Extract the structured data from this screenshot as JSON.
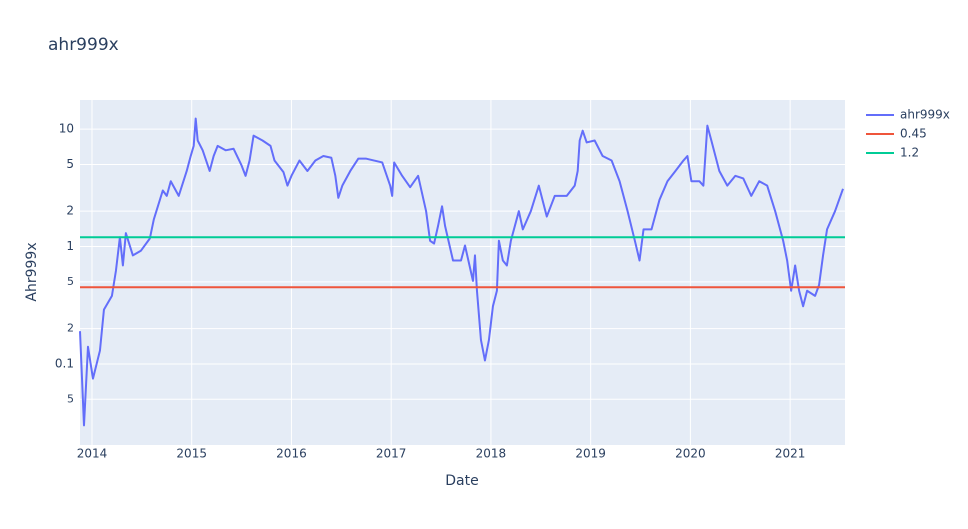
{
  "chart_data": {
    "type": "line",
    "title": "ahr999x",
    "x_label": "Date",
    "y_label": "Ahr999x",
    "y_log": true,
    "grid": true,
    "legend": "right",
    "xlim": [
      2013.88,
      2021.55
    ],
    "xticks": [
      2014,
      2015,
      2016,
      2017,
      2018,
      2019,
      2020,
      2021
    ],
    "ylim": [
      0.0204,
      17.7
    ],
    "yticks": [
      {
        "value": 0.05,
        "label": "5"
      },
      0.1,
      {
        "value": 0.2,
        "label": "2"
      },
      {
        "value": 0.5,
        "label": "5"
      },
      1,
      2,
      5,
      10
    ],
    "series": [
      {
        "name": "ahr999x",
        "color": "#636efa",
        "x": [
          2013.88,
          2013.92,
          2013.96,
          2014.01,
          2014.08,
          2014.12,
          2014.2,
          2014.24,
          2014.28,
          2014.31,
          2014.34,
          2014.41,
          2014.49,
          2014.58,
          2014.62,
          2014.71,
          2014.75,
          2014.79,
          2014.87,
          2014.95,
          2014.99,
          2015.02,
          2015.04,
          2015.06,
          2015.11,
          2015.18,
          2015.22,
          2015.26,
          2015.34,
          2015.42,
          2015.5,
          2015.54,
          2015.58,
          2015.62,
          2015.71,
          2015.79,
          2015.83,
          2015.92,
          2015.96,
          2016.0,
          2016.08,
          2016.16,
          2016.24,
          2016.32,
          2016.4,
          2016.44,
          2016.47,
          2016.51,
          2016.59,
          2016.67,
          2016.75,
          2016.83,
          2016.91,
          2016.99,
          2017.01,
          2017.03,
          2017.11,
          2017.19,
          2017.27,
          2017.35,
          2017.39,
          2017.43,
          2017.47,
          2017.51,
          2017.54,
          2017.62,
          2017.7,
          2017.74,
          2017.82,
          2017.84,
          2017.86,
          2017.9,
          2017.94,
          2017.98,
          2018.02,
          2018.06,
          2018.08,
          2018.12,
          2018.16,
          2018.2,
          2018.28,
          2018.32,
          2018.4,
          2018.48,
          2018.56,
          2018.64,
          2018.76,
          2018.84,
          2018.87,
          2018.89,
          2018.92,
          2018.96,
          2019.04,
          2019.12,
          2019.21,
          2019.29,
          2019.37,
          2019.45,
          2019.49,
          2019.53,
          2019.61,
          2019.69,
          2019.77,
          2019.85,
          2019.93,
          2019.97,
          2020.01,
          2020.09,
          2020.13,
          2020.17,
          2020.21,
          2020.29,
          2020.37,
          2020.45,
          2020.53,
          2020.61,
          2020.69,
          2020.77,
          2020.85,
          2020.93,
          2020.97,
          2021.01,
          2021.05,
          2021.09,
          2021.13,
          2021.17,
          2021.25,
          2021.29,
          2021.33,
          2021.37,
          2021.45,
          2021.53
        ],
        "values": [
          0.19,
          0.03,
          0.14,
          0.075,
          0.13,
          0.29,
          0.38,
          0.62,
          1.2,
          0.69,
          1.3,
          0.84,
          0.92,
          1.17,
          1.7,
          3.0,
          2.7,
          3.6,
          2.7,
          4.4,
          5.9,
          7.2,
          12.3,
          8.0,
          6.6,
          4.4,
          5.9,
          7.2,
          6.6,
          6.8,
          4.9,
          4.0,
          5.4,
          8.8,
          8.0,
          7.2,
          5.4,
          4.3,
          3.3,
          4.0,
          5.4,
          4.4,
          5.4,
          5.9,
          5.7,
          4.0,
          2.6,
          3.3,
          4.4,
          5.6,
          5.6,
          5.4,
          5.2,
          3.3,
          2.7,
          5.2,
          4.0,
          3.2,
          4.0,
          2.0,
          1.12,
          1.06,
          1.5,
          2.2,
          1.5,
          0.76,
          0.76,
          1.02,
          0.51,
          0.84,
          0.42,
          0.16,
          0.107,
          0.16,
          0.31,
          0.42,
          1.12,
          0.76,
          0.69,
          1.12,
          2.0,
          1.4,
          2.0,
          3.3,
          1.8,
          2.7,
          2.7,
          3.3,
          4.4,
          8.0,
          9.7,
          7.7,
          8.0,
          5.9,
          5.4,
          3.6,
          2.0,
          1.06,
          0.76,
          1.4,
          1.4,
          2.5,
          3.6,
          4.4,
          5.4,
          5.9,
          3.6,
          3.6,
          3.3,
          10.7,
          8.0,
          4.4,
          3.3,
          4.0,
          3.8,
          2.7,
          3.6,
          3.3,
          2.0,
          1.12,
          0.76,
          0.42,
          0.69,
          0.42,
          0.31,
          0.42,
          0.38,
          0.47,
          0.84,
          1.4,
          2.0,
          3.1
        ]
      },
      {
        "name": "0.45",
        "color": "#ef553b",
        "x": [
          2013.88,
          2021.55
        ],
        "values": [
          0.45,
          0.45
        ]
      },
      {
        "name": "1.2",
        "color": "#00cc96",
        "x": [
          2013.88,
          2021.55
        ],
        "values": [
          1.2,
          1.2
        ]
      }
    ]
  }
}
